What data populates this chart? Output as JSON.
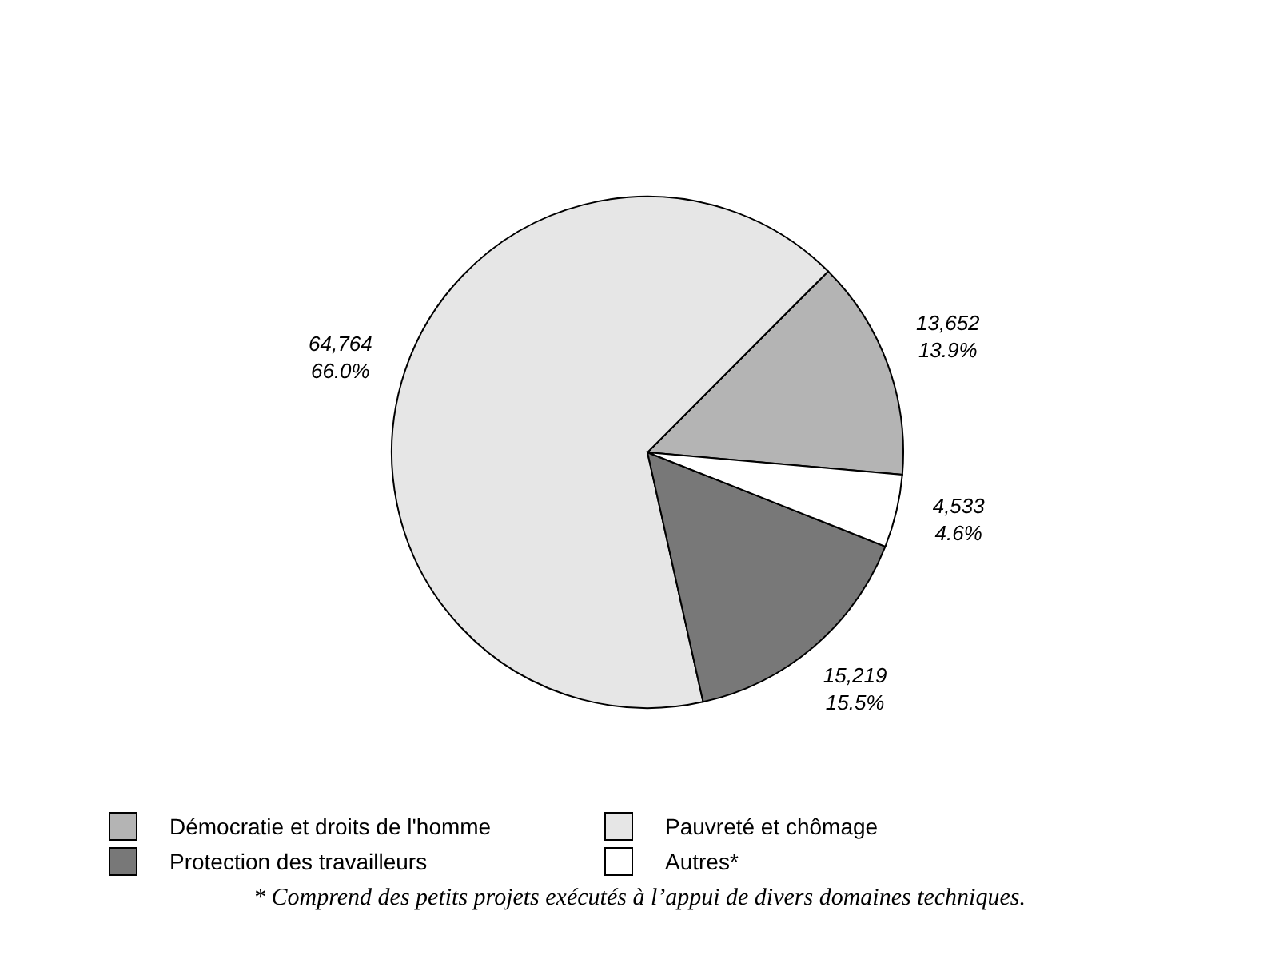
{
  "chart_data": {
    "type": "pie",
    "categories": [
      "Démocratie et droits de l'homme",
      "Pauvreté et chômage",
      "Protection des travailleurs",
      "Autres*"
    ],
    "values": [
      13652,
      64764,
      15219,
      4533
    ],
    "value_labels": [
      "13,652\n13.9%",
      "64,764\n66.0%",
      "15,219\n15.5%",
      "4,533\n4.6%"
    ],
    "colors": [
      "#b4b4b4",
      "#e6e6e6",
      "#787878",
      "#ffffff"
    ],
    "legend": "bottom",
    "annotations": [
      "* Comprend des petits projets exécutés à l’appui de divers domaines techniques."
    ]
  }
}
